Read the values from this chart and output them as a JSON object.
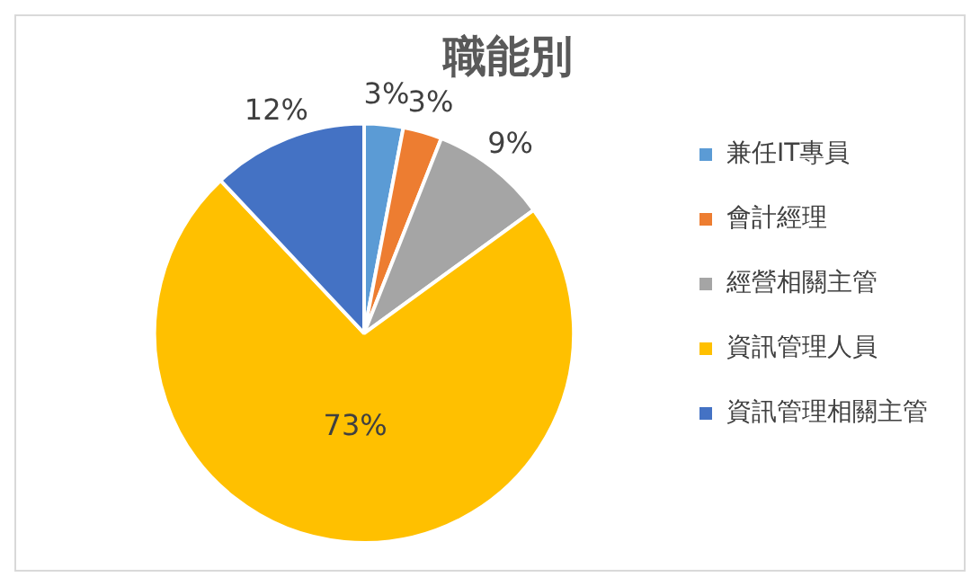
{
  "chart_data": {
    "type": "pie",
    "title": "職能別",
    "categories": [
      "兼任IT專員",
      "會計經理",
      "經營相關主管",
      "資訊管理人員",
      "資訊管理相關主管"
    ],
    "values": [
      3,
      3,
      9,
      73,
      12
    ],
    "value_labels": [
      "3%",
      "3%",
      "9%",
      "73%",
      "12%"
    ],
    "colors": [
      "#5b9bd5",
      "#ed7d31",
      "#a5a5a5",
      "#ffc000",
      "#4472c4"
    ],
    "legend": "right"
  }
}
